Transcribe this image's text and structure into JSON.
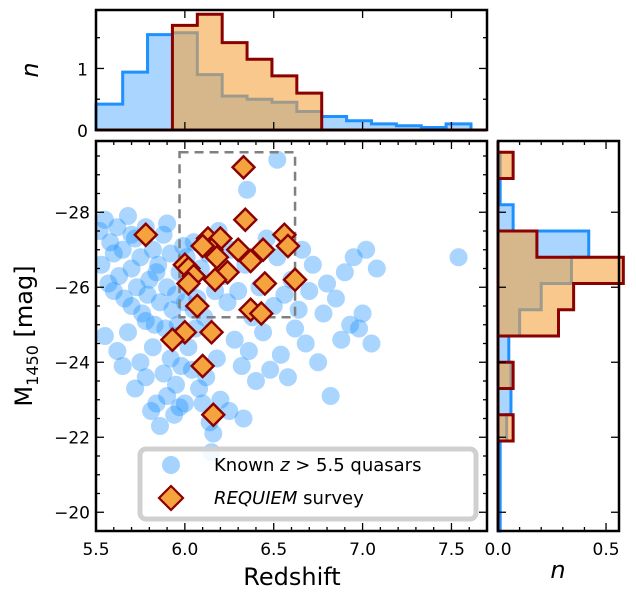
{
  "chart_data": [
    {
      "type": "scatter",
      "panel": "main",
      "xlabel": "Redshift",
      "ylabel_main": "M",
      "ylabel_sub": "1450",
      "ylabel_unit": "[mag]",
      "xlim": [
        5.5,
        7.7
      ],
      "ylim": [
        -19.5,
        -29.9
      ],
      "x_ticks": [
        5.5,
        6.0,
        6.5,
        7.0,
        7.5
      ],
      "x_tick_labels": [
        "5.5",
        "6.0",
        "6.5",
        "7.0",
        "7.5"
      ],
      "y_ticks": [
        -20,
        -22,
        -24,
        -26,
        -28
      ],
      "y_tick_labels": [
        "−20",
        "−22",
        "−24",
        "−26",
        "−28"
      ],
      "legend_position": "lower-center",
      "legend_entries": [
        {
          "marker": "circle",
          "label_pre": "Known ",
          "label_z": "z",
          "label_post": " > 5.5 quasars"
        },
        {
          "marker": "diamond",
          "label_italic": "REQUIEM",
          "label_post": " survey"
        }
      ],
      "selection_box": {
        "x": [
          5.97,
          6.62
        ],
        "y": [
          -25.2,
          -29.6
        ]
      },
      "series": [
        {
          "name": "Known z > 5.5 quasars",
          "marker": "circle",
          "color": "#1e90ff",
          "points": [
            [
              5.52,
              -27.5
            ],
            [
              5.55,
              -27.8
            ],
            [
              5.58,
              -27.2
            ],
            [
              5.6,
              -26.9
            ],
            [
              5.62,
              -27.6
            ],
            [
              5.65,
              -27.0
            ],
            [
              5.68,
              -27.9
            ],
            [
              5.7,
              -26.5
            ],
            [
              5.72,
              -27.3
            ],
            [
              5.75,
              -26.8
            ],
            [
              5.78,
              -27.6
            ],
            [
              5.8,
              -26.2
            ],
            [
              5.82,
              -27.0
            ],
            [
              5.85,
              -26.6
            ],
            [
              5.88,
              -27.4
            ],
            [
              5.9,
              -26.0
            ],
            [
              5.92,
              -26.9
            ],
            [
              5.95,
              -25.8
            ],
            [
              5.97,
              -26.4
            ],
            [
              5.99,
              -27.1
            ],
            [
              5.53,
              -26.6
            ],
            [
              5.57,
              -26.1
            ],
            [
              5.6,
              -25.9
            ],
            [
              5.63,
              -26.3
            ],
            [
              5.66,
              -25.7
            ],
            [
              5.7,
              -25.5
            ],
            [
              5.73,
              -26.0
            ],
            [
              5.76,
              -25.3
            ],
            [
              5.79,
              -25.8
            ],
            [
              5.83,
              -25.0
            ],
            [
              5.86,
              -25.6
            ],
            [
              5.89,
              -24.9
            ],
            [
              5.93,
              -25.4
            ],
            [
              5.96,
              -24.7
            ],
            [
              5.55,
              -24.7
            ],
            [
              5.62,
              -24.3
            ],
            [
              5.68,
              -24.8
            ],
            [
              5.75,
              -24.0
            ],
            [
              5.82,
              -24.4
            ],
            [
              5.88,
              -23.7
            ],
            [
              5.92,
              -24.1
            ],
            [
              5.95,
              -23.4
            ],
            [
              5.98,
              -23.9
            ],
            [
              5.65,
              -23.9
            ],
            [
              5.72,
              -23.3
            ],
            [
              5.78,
              -23.6
            ],
            [
              5.84,
              -22.9
            ],
            [
              5.9,
              -23.1
            ],
            [
              5.94,
              -22.6
            ],
            [
              5.97,
              -22.8
            ],
            [
              5.81,
              -22.7
            ],
            [
              5.86,
              -22.3
            ],
            [
              6.01,
              -26.8
            ],
            [
              6.03,
              -26.1
            ],
            [
              6.05,
              -27.2
            ],
            [
              6.07,
              -25.7
            ],
            [
              6.09,
              -26.5
            ],
            [
              6.11,
              -25.2
            ],
            [
              6.13,
              -26.9
            ],
            [
              6.15,
              -24.8
            ],
            [
              6.17,
              -25.9
            ],
            [
              6.19,
              -27.5
            ],
            [
              6.02,
              -24.4
            ],
            [
              6.04,
              -23.8
            ],
            [
              6.06,
              -24.9
            ],
            [
              6.08,
              -23.3
            ],
            [
              6.1,
              -22.9
            ],
            [
              6.12,
              -23.6
            ],
            [
              6.14,
              -22.4
            ],
            [
              6.16,
              -22.1
            ],
            [
              6.18,
              -24.1
            ],
            [
              6.2,
              -23.0
            ],
            [
              6.22,
              -26.3
            ],
            [
              6.24,
              -25.6
            ],
            [
              6.26,
              -27.0
            ],
            [
              6.28,
              -24.6
            ],
            [
              6.3,
              -25.9
            ],
            [
              6.32,
              -23.9
            ],
            [
              6.34,
              -26.6
            ],
            [
              6.36,
              -24.3
            ],
            [
              6.38,
              -25.2
            ],
            [
              6.4,
              -23.5
            ],
            [
              6.42,
              -26.0
            ],
            [
              6.44,
              -24.8
            ],
            [
              6.46,
              -27.3
            ],
            [
              6.48,
              -23.8
            ],
            [
              6.5,
              -25.5
            ],
            [
              6.52,
              -26.8
            ],
            [
              6.54,
              -24.2
            ],
            [
              6.56,
              -25.8
            ],
            [
              6.58,
              -23.6
            ],
            [
              6.6,
              -26.2
            ],
            [
              6.62,
              -24.9
            ],
            [
              6.64,
              -25.4
            ],
            [
              6.66,
              -27.0
            ],
            [
              6.68,
              -24.5
            ],
            [
              6.7,
              -25.9
            ],
            [
              6.72,
              -26.6
            ],
            [
              6.75,
              -24.0
            ],
            [
              6.78,
              -25.3
            ],
            [
              6.8,
              -26.1
            ],
            [
              6.82,
              -23.1
            ],
            [
              6.85,
              -25.7
            ],
            [
              6.88,
              -24.6
            ],
            [
              6.9,
              -26.4
            ],
            [
              6.93,
              -25.0
            ],
            [
              6.95,
              -26.8
            ],
            [
              7.0,
              -25.3
            ],
            [
              7.02,
              -27.0
            ],
            [
              7.08,
              -26.5
            ],
            [
              7.05,
              -24.5
            ],
            [
              6.98,
              -24.9
            ],
            [
              7.54,
              -26.8
            ],
            [
              6.52,
              -29.4
            ],
            [
              6.35,
              -28.6
            ],
            [
              5.7,
              -27.4
            ],
            [
              5.84,
              -26.4
            ],
            [
              5.9,
              -27.7
            ],
            [
              5.78,
              -25.1
            ],
            [
              5.96,
              -25.0
            ],
            [
              6.0,
              -25.6
            ],
            [
              6.05,
              -25.4
            ],
            [
              6.25,
              -22.7
            ],
            [
              6.15,
              -21.6
            ],
            [
              6.0,
              -22.9
            ],
            [
              6.33,
              -22.5
            ]
          ]
        },
        {
          "name": "REQUIEM survey",
          "marker": "diamond",
          "color": "#f5a33f",
          "edge_color": "#8b0000",
          "points": [
            [
              6.33,
              -29.2
            ],
            [
              5.78,
              -27.4
            ],
            [
              6.34,
              -27.8
            ],
            [
              6.13,
              -27.3
            ],
            [
              6.2,
              -27.3
            ],
            [
              6.15,
              -27.0
            ],
            [
              6.1,
              -27.1
            ],
            [
              6.3,
              -27.0
            ],
            [
              6.44,
              -27.0
            ],
            [
              6.56,
              -27.4
            ],
            [
              6.58,
              -27.1
            ],
            [
              6.0,
              -26.6
            ],
            [
              6.02,
              -26.5
            ],
            [
              6.05,
              -26.3
            ],
            [
              6.18,
              -26.8
            ],
            [
              6.37,
              -26.7
            ],
            [
              6.24,
              -26.4
            ],
            [
              6.17,
              -26.2
            ],
            [
              6.02,
              -26.1
            ],
            [
              6.62,
              -26.2
            ],
            [
              6.45,
              -26.1
            ],
            [
              6.07,
              -25.5
            ],
            [
              6.37,
              -25.4
            ],
            [
              6.43,
              -25.3
            ],
            [
              6.15,
              -24.8
            ],
            [
              6.0,
              -24.8
            ],
            [
              5.93,
              -24.6
            ],
            [
              6.1,
              -23.9
            ],
            [
              6.16,
              -22.6
            ]
          ]
        }
      ]
    },
    {
      "type": "histogram",
      "panel": "top",
      "ylabel": "n",
      "xlim": [
        5.5,
        7.7
      ],
      "ylim": [
        0,
        1.95
      ],
      "y_ticks": [
        0,
        1
      ],
      "y_tick_labels": [
        "0",
        "1"
      ],
      "bin_edges": [
        5.5,
        5.65,
        5.79,
        5.93,
        6.07,
        6.21,
        6.35,
        6.49,
        6.63,
        6.77,
        6.91,
        7.05,
        7.19,
        7.33,
        7.47,
        7.61,
        7.7
      ],
      "series": [
        {
          "name": "Known z > 5.5 quasars",
          "color": "#1e90ff",
          "values": [
            0.42,
            0.94,
            1.55,
            1.58,
            0.9,
            0.55,
            0.5,
            0.45,
            0.3,
            0.22,
            0.15,
            0.1,
            0.07,
            0.04,
            0.1,
            0
          ]
        },
        {
          "name": "REQUIEM survey",
          "color": "#f5a33f",
          "edge_color": "#8b0000",
          "values": [
            0,
            0,
            0,
            1.7,
            1.88,
            1.42,
            1.15,
            0.88,
            0.6,
            0,
            0,
            0,
            0,
            0,
            0,
            0
          ]
        }
      ]
    },
    {
      "type": "histogram",
      "orientation": "horizontal",
      "panel": "right",
      "xlabel": "n",
      "xlim": [
        0,
        0.56
      ],
      "x_ticks": [
        0,
        0.5
      ],
      "x_tick_labels": [
        "0.0",
        "0.5"
      ],
      "bin_edges": [
        -19.5,
        -21.9,
        -22.6,
        -23.3,
        -24.0,
        -24.7,
        -25.4,
        -26.1,
        -26.8,
        -27.5,
        -28.2,
        -28.9,
        -29.6,
        -29.9
      ],
      "series": [
        {
          "name": "Known z > 5.5 quasars",
          "color": "#1e90ff",
          "values": [
            0.01,
            0.04,
            0.06,
            0.06,
            0.05,
            0.1,
            0.2,
            0.34,
            0.42,
            0.07,
            0.01,
            0.01,
            0
          ]
        },
        {
          "name": "REQUIEM survey",
          "color": "#f5a33f",
          "edge_color": "#8b0000",
          "values": [
            0,
            0.07,
            0,
            0.07,
            0,
            0.28,
            0.35,
            0.58,
            0.18,
            0,
            0,
            0.07,
            0
          ]
        }
      ]
    }
  ]
}
